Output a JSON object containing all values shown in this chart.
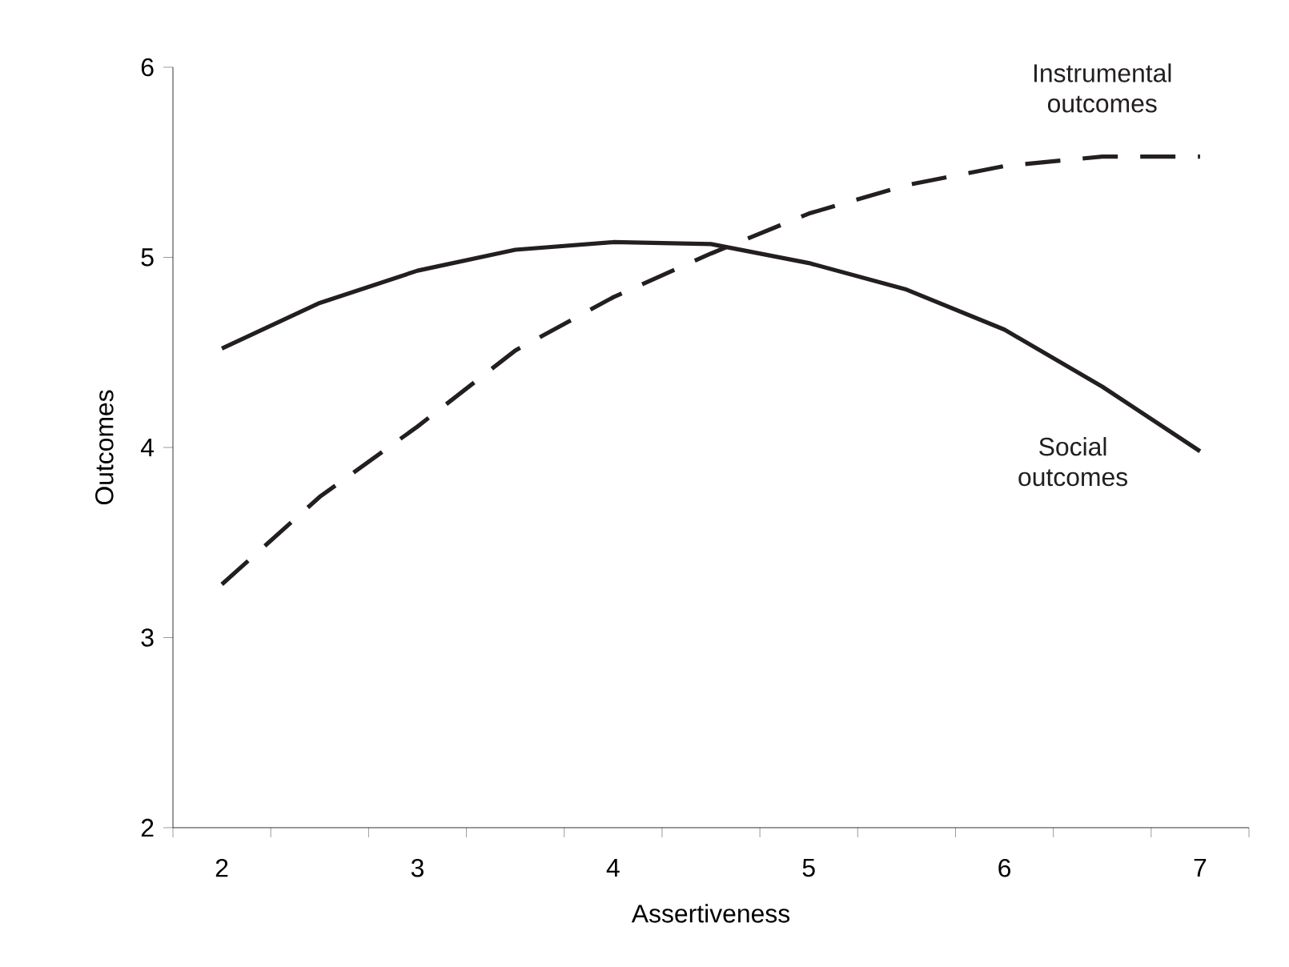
{
  "chart_data": {
    "type": "line",
    "xlabel": "Assertiveness",
    "ylabel": "Outcomes",
    "categories": [
      "2",
      null,
      "3",
      null,
      "4",
      null,
      "5",
      null,
      "6",
      null,
      "7"
    ],
    "ylim": [
      2,
      6
    ],
    "yticks": [
      2,
      3,
      4,
      5,
      6
    ],
    "grid": false,
    "legend": false,
    "marker": "none",
    "series": [
      {
        "name": "Social outcomes",
        "color": "#231f20",
        "line_style": "solid",
        "values": [
          4.52,
          4.76,
          4.93,
          5.04,
          5.08,
          5.07,
          4.97,
          4.83,
          4.62,
          4.32,
          3.98
        ]
      },
      {
        "name": "Instrumental outcomes",
        "color": "#231f20",
        "line_style": "dashed",
        "values": [
          3.28,
          3.74,
          4.11,
          4.51,
          4.79,
          5.02,
          5.23,
          5.38,
          5.48,
          5.53,
          5.53
        ]
      }
    ]
  }
}
